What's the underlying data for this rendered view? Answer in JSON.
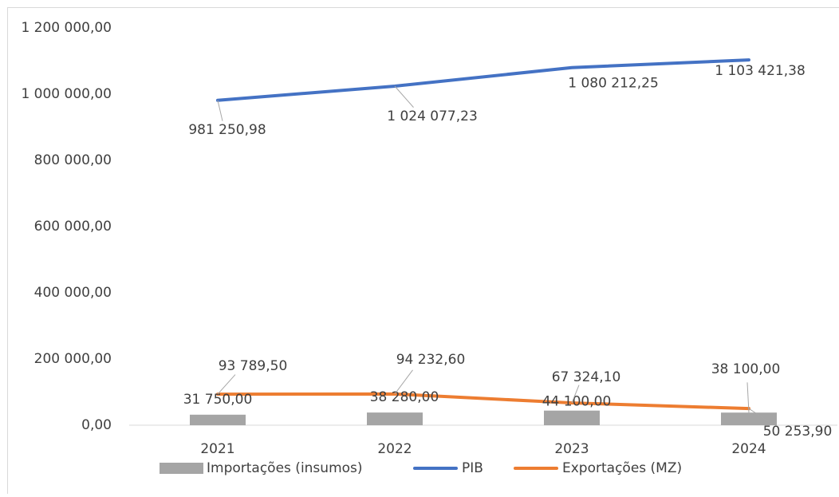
{
  "chart_data": {
    "type": "combo",
    "categories": [
      "2021",
      "2022",
      "2023",
      "2024"
    ],
    "series": [
      {
        "name": "Importações (insumos)",
        "type": "bar",
        "color": "#a5a5a5",
        "values": [
          31750,
          38280,
          44100,
          38100
        ],
        "value_labels": [
          "31 750,00",
          "38 280,00",
          "44 100,00",
          "38 100,00"
        ]
      },
      {
        "name": "PIB",
        "type": "line",
        "color": "#4472c4",
        "values": [
          981250.98,
          1024077.23,
          1080212.25,
          1103421.38
        ],
        "value_labels": [
          "981 250,98",
          "1 024 077,23",
          "1 080 212,25",
          "1 103 421,38"
        ]
      },
      {
        "name": "Exportações (MZ)",
        "type": "line",
        "color": "#ed7d31",
        "values": [
          93789.5,
          94232.6,
          67324.1,
          50253.9
        ],
        "value_labels": [
          "93 789,50",
          "94 232,60",
          "67 324,10",
          "50 253,90"
        ]
      }
    ],
    "ylim": [
      0,
      1200000
    ],
    "yticks": [
      {
        "value": 0,
        "label": "0,00"
      },
      {
        "value": 200000,
        "label": "200 000,00"
      },
      {
        "value": 400000,
        "label": "400 000,00"
      },
      {
        "value": 600000,
        "label": "600 000,00"
      },
      {
        "value": 800000,
        "label": "800 000,00"
      },
      {
        "value": 1000000,
        "label": "1 000 000,00"
      },
      {
        "value": 1200000,
        "label": "1 200 000,00"
      }
    ],
    "grid": false,
    "legend": "bottom"
  }
}
